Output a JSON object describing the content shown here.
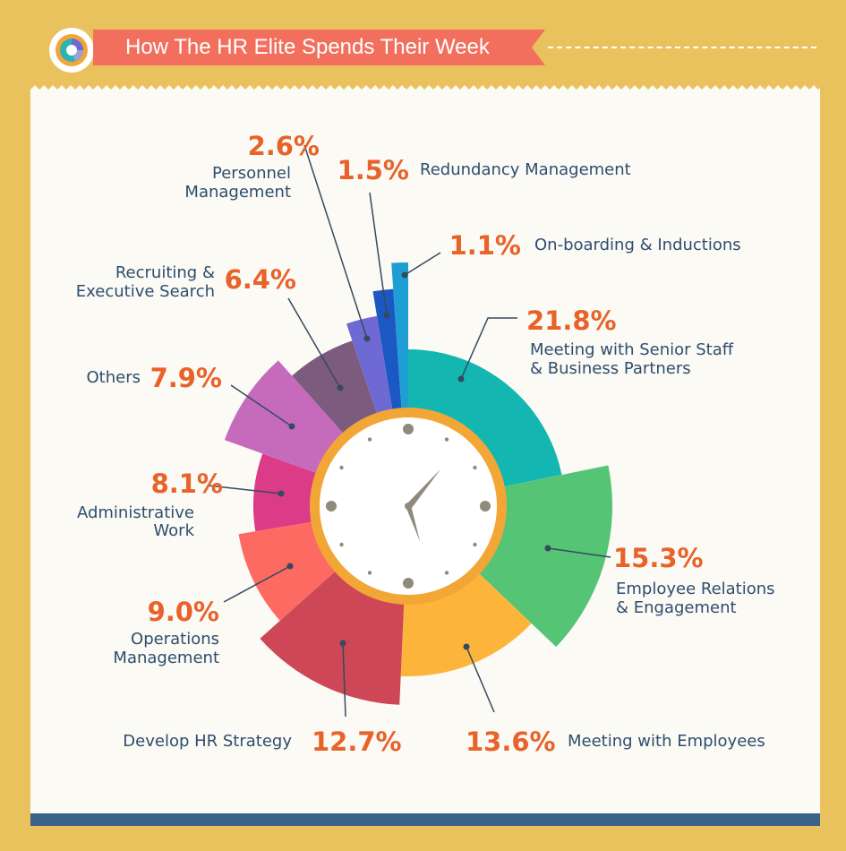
{
  "title": "How The HR Elite Spends Their Week",
  "colors": {
    "background": "#e9c25e",
    "panel": "#fbfaf4",
    "banner": "#f26f5d",
    "bottom_bar": "#3a6188",
    "percent_text": "#e8622a",
    "label_text": "#2e4d6f",
    "clock_ring": "#f2a635"
  },
  "chart_data": {
    "type": "pie",
    "title": "How The HR Elite Spends Their Week",
    "slices": [
      {
        "name": "Meeting with Senior Staff & Business Partners",
        "label_lines": [
          "Meeting with Senior Staff",
          "& Business Partners"
        ],
        "value": 21.8,
        "percent": "21.8%",
        "color": "#14b6b2"
      },
      {
        "name": "Employee Relations & Engagement",
        "label_lines": [
          "Employee Relations",
          "& Engagement"
        ],
        "value": 15.3,
        "percent": "15.3%",
        "color": "#55c475"
      },
      {
        "name": "Meeting with Employees",
        "label_lines": [
          "Meeting with Employees"
        ],
        "value": 13.6,
        "percent": "13.6%",
        "color": "#fcb53a"
      },
      {
        "name": "Develop HR Strategy",
        "label_lines": [
          "Develop HR Strategy"
        ],
        "value": 12.7,
        "percent": "12.7%",
        "color": "#cd4756"
      },
      {
        "name": "Operations Management",
        "label_lines": [
          "Operations",
          "Management"
        ],
        "value": 9.0,
        "percent": "9.0%",
        "color": "#fc6a61"
      },
      {
        "name": "Administrative Work",
        "label_lines": [
          "Administrative",
          "Work"
        ],
        "value": 8.1,
        "percent": "8.1%",
        "color": "#dc3b87"
      },
      {
        "name": "Others",
        "label_lines": [
          "Others"
        ],
        "value": 7.9,
        "percent": "7.9%",
        "color": "#c66bbc"
      },
      {
        "name": "Recruiting & Executive Search",
        "label_lines": [
          "Recruiting &",
          "Executive Search"
        ],
        "value": 6.4,
        "percent": "6.4%",
        "color": "#7c5b7f"
      },
      {
        "name": "Personnel Management",
        "label_lines": [
          "Personnel",
          "Management"
        ],
        "value": 2.6,
        "percent": "2.6%",
        "color": "#6f6ad3"
      },
      {
        "name": "Redundancy Management",
        "label_lines": [
          "Redundancy Management"
        ],
        "value": 1.5,
        "percent": "1.5%",
        "color": "#1c58c4"
      },
      {
        "name": "On-boarding & Inductions",
        "label_lines": [
          "On-boarding & Inductions"
        ],
        "value": 1.1,
        "percent": "1.1%",
        "color": "#1f9ed3"
      }
    ]
  }
}
